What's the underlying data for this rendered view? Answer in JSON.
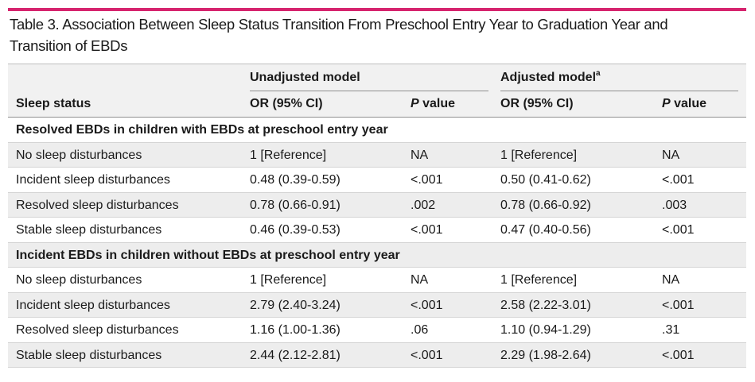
{
  "title": "Table 3. Association Between Sleep Status Transition From Preschool Entry Year to Graduation Year and Transition of EBDs",
  "header": {
    "group1": "Unadjusted model",
    "group2": "Adjusted model",
    "group2_sup": "a",
    "col_status": "Sleep status",
    "col_or": "OR (95% CI)",
    "col_p_italic": "P",
    "col_p_rest": " value"
  },
  "sections": [
    {
      "title": "Resolved EBDs in children with EBDs at preschool entry year",
      "rows": [
        {
          "status": "No sleep disturbances",
          "or_unadj": "1 [Reference]",
          "p_unadj": "NA",
          "or_adj": "1 [Reference]",
          "p_adj": "NA"
        },
        {
          "status": "Incident sleep disturbances",
          "or_unadj": "0.48 (0.39-0.59)",
          "p_unadj": "<.001",
          "or_adj": "0.50 (0.41-0.62)",
          "p_adj": "<.001"
        },
        {
          "status": "Resolved sleep disturbances",
          "or_unadj": "0.78 (0.66-0.91)",
          "p_unadj": ".002",
          "or_adj": "0.78 (0.66-0.92)",
          "p_adj": ".003"
        },
        {
          "status": "Stable sleep disturbances",
          "or_unadj": "0.46 (0.39-0.53)",
          "p_unadj": "<.001",
          "or_adj": "0.47 (0.40-0.56)",
          "p_adj": "<.001"
        }
      ]
    },
    {
      "title": "Incident EBDs in children without EBDs at preschool entry year",
      "rows": [
        {
          "status": "No sleep disturbances",
          "or_unadj": "1 [Reference]",
          "p_unadj": "NA",
          "or_adj": "1 [Reference]",
          "p_adj": "NA"
        },
        {
          "status": "Incident sleep disturbances",
          "or_unadj": "2.79 (2.40-3.24)",
          "p_unadj": "<.001",
          "or_adj": "2.58 (2.22-3.01)",
          "p_adj": "<.001"
        },
        {
          "status": "Resolved sleep disturbances",
          "or_unadj": "1.16 (1.00-1.36)",
          "p_unadj": ".06",
          "or_adj": "1.10 (0.94-1.29)",
          "p_adj": ".31"
        },
        {
          "status": "Stable sleep disturbances",
          "or_unadj": "2.44 (2.12-2.81)",
          "p_unadj": "<.001",
          "or_adj": "2.29 (1.98-2.64)",
          "p_adj": "<.001"
        }
      ]
    }
  ]
}
